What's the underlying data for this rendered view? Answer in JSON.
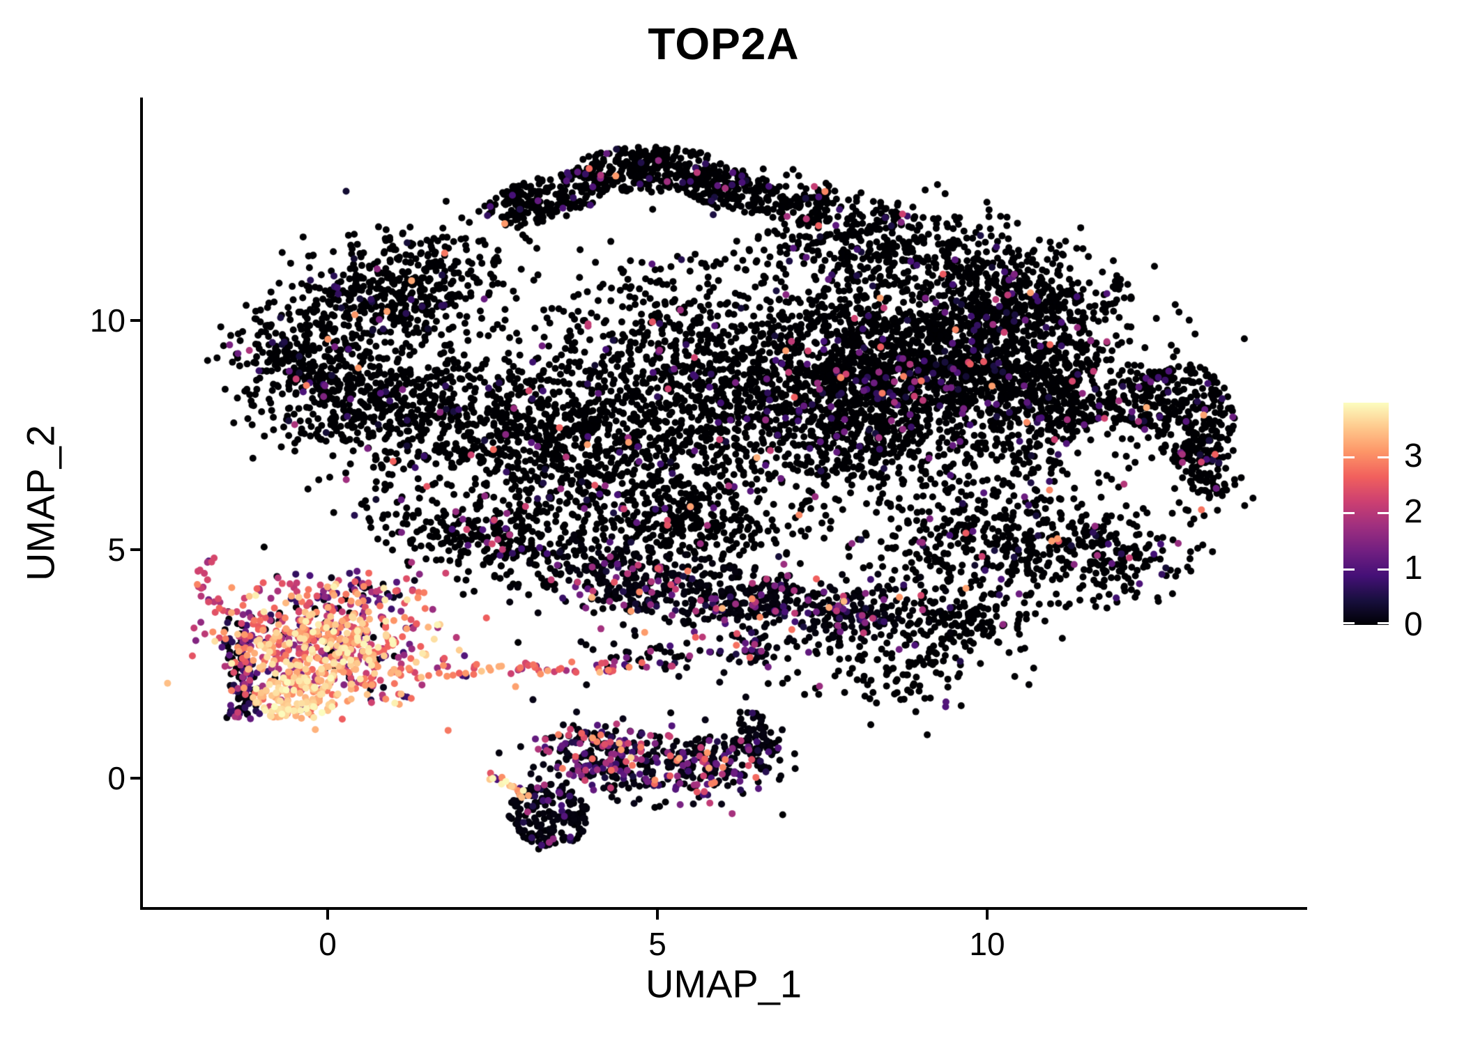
{
  "chart_data": {
    "type": "scatter",
    "title": "TOP2A",
    "xlabel": "UMAP_1",
    "ylabel": "UMAP_2",
    "xlim": [
      -2.8,
      14.8
    ],
    "ylim": [
      -2.8,
      14.8
    ],
    "xticks": [
      0,
      5,
      10
    ],
    "yticks": [
      0,
      5,
      10
    ],
    "grid": false,
    "point_radius_px": 5,
    "seed": 1337,
    "colorbar": {
      "position": "right",
      "tick_values": [
        0,
        1,
        2,
        3
      ],
      "tick_labels": [
        "0",
        "1",
        "2",
        "3"
      ],
      "vmin": 0,
      "vmax": 3.95,
      "colormap": "magma",
      "stops": [
        "#000004",
        "#180f3e",
        "#451077",
        "#721f81",
        "#9f2f7f",
        "#cd4071",
        "#f1605d",
        "#fd9567",
        "#fec98d",
        "#fcfdbf"
      ]
    },
    "expr_profiles": {
      "A": [
        [
          0.935,
          0,
          0
        ],
        [
          0.045,
          0.3,
          1.3
        ],
        [
          0.014,
          1.3,
          2.3
        ],
        [
          0.006,
          2.3,
          3.3
        ]
      ],
      "B": [
        [
          0.8,
          0,
          0.1
        ],
        [
          0.1,
          0.3,
          1.3
        ],
        [
          0.06,
          1.3,
          2.3
        ],
        [
          0.04,
          2.3,
          3.4
        ]
      ],
      "C": [
        [
          0.05,
          0,
          0.2
        ],
        [
          0.1,
          0.5,
          1.6
        ],
        [
          0.22,
          1.6,
          2.5
        ],
        [
          0.38,
          2.5,
          3.3
        ],
        [
          0.25,
          3.3,
          3.95
        ]
      ],
      "D": [
        [
          0.1,
          2.6,
          3.2
        ],
        [
          0.9,
          3.2,
          3.95
        ]
      ],
      "E": [
        [
          0.55,
          0,
          0.1
        ],
        [
          0.3,
          0.3,
          1.2
        ],
        [
          0.15,
          1.5,
          2.6
        ]
      ],
      "F": [
        [
          0.25,
          0,
          0.2
        ],
        [
          0.3,
          0.6,
          1.6
        ],
        [
          0.3,
          1.6,
          2.6
        ],
        [
          0.15,
          2.6,
          3.3
        ]
      ],
      "G": [
        [
          0.15,
          0.8,
          1.5
        ],
        [
          0.7,
          1.8,
          2.7
        ],
        [
          0.15,
          2.7,
          3.2
        ]
      ],
      "H": [
        [
          0.08,
          0.6,
          1.4
        ],
        [
          0.25,
          1.6,
          2.4
        ],
        [
          0.55,
          2.4,
          3.2
        ],
        [
          0.12,
          3.2,
          3.7
        ]
      ],
      "I": [
        [
          0.62,
          0,
          0.15
        ],
        [
          0.2,
          0.4,
          1.4
        ],
        [
          0.12,
          1.4,
          2.4
        ],
        [
          0.06,
          2.4,
          3.4
        ]
      ],
      "J": [
        [
          0.88,
          0,
          0.1
        ],
        [
          0.09,
          0.4,
          1.3
        ],
        [
          0.03,
          1.4,
          2.2
        ]
      ],
      "K": [
        [
          0.2,
          0.9,
          1.7
        ],
        [
          0.35,
          2.2,
          3.0
        ],
        [
          0.3,
          3.0,
          3.7
        ],
        [
          0.15,
          3.7,
          3.95
        ]
      ]
    },
    "holes": [
      {
        "c": [
          11.95,
          6.8
        ],
        "r": [
          0.85,
          0.95
        ],
        "keep": 0.18
      },
      {
        "c": [
          4.9,
          12.1
        ],
        "r": [
          1.5,
          0.55
        ],
        "keep": 0.3
      },
      {
        "c": [
          2.0,
          6.2
        ],
        "r": [
          0.8,
          0.55
        ],
        "keep": 0.45
      },
      {
        "c": [
          12.2,
          9.9
        ],
        "r": [
          0.6,
          0.5
        ],
        "keep": 0.4
      }
    ],
    "clusters": [
      {
        "name": "ridge-left",
        "group": "blob",
        "shape": "uniform",
        "c": [
          3.3,
          12.65
        ],
        "r": [
          1.05,
          0.5
        ],
        "rot": 25,
        "n": 230,
        "expr": "A"
      },
      {
        "name": "ridge-top",
        "group": "blob",
        "shape": "uniform",
        "c": [
          4.9,
          13.3
        ],
        "r": [
          1.15,
          0.5
        ],
        "rot": 0,
        "n": 270,
        "expr": "A"
      },
      {
        "name": "ridge-right",
        "group": "blob",
        "shape": "uniform",
        "c": [
          6.15,
          12.85
        ],
        "r": [
          0.85,
          0.45
        ],
        "rot": -20,
        "n": 170,
        "expr": "A"
      },
      {
        "name": "upper-left-slope",
        "group": "blob",
        "shape": "gauss",
        "c": [
          1.1,
          10.6
        ],
        "r": [
          1.7,
          1.1
        ],
        "rot": 28,
        "n": 520,
        "expr": "A"
      },
      {
        "name": "left-bulge",
        "group": "blob",
        "shape": "gauss",
        "c": [
          -0.5,
          9.0
        ],
        "r": [
          1.0,
          1.3
        ],
        "rot": 10,
        "n": 260,
        "expr": "A"
      },
      {
        "name": "left-mid",
        "group": "blob",
        "shape": "gauss",
        "c": [
          0.9,
          8.2
        ],
        "r": [
          1.3,
          1.2
        ],
        "rot": 0,
        "n": 380,
        "expr": "A"
      },
      {
        "name": "mid-left",
        "group": "blob",
        "shape": "gauss",
        "c": [
          3.1,
          7.4
        ],
        "r": [
          2.0,
          1.9
        ],
        "rot": 0,
        "n": 820,
        "expr": "A"
      },
      {
        "name": "low-left-band",
        "group": "blob",
        "shape": "gauss",
        "c": [
          2.3,
          5.4
        ],
        "r": [
          1.5,
          0.9
        ],
        "rot": -25,
        "n": 300,
        "expr": "A"
      },
      {
        "name": "center",
        "group": "blob",
        "shape": "gauss",
        "c": [
          5.6,
          8.6
        ],
        "r": [
          2.1,
          2.4
        ],
        "rot": 0,
        "n": 1050,
        "expr": "A"
      },
      {
        "name": "center-low",
        "group": "blob",
        "shape": "gauss",
        "c": [
          5.2,
          5.6
        ],
        "r": [
          1.7,
          1.1
        ],
        "rot": -10,
        "n": 380,
        "expr": "A"
      },
      {
        "name": "core-right",
        "group": "blob",
        "shape": "gauss",
        "c": [
          8.2,
          8.5
        ],
        "r": [
          1.8,
          2.0
        ],
        "rot": 8,
        "n": 1350,
        "expr": "A"
      },
      {
        "name": "core-top-right",
        "group": "blob",
        "shape": "gauss",
        "c": [
          9.8,
          9.4
        ],
        "r": [
          1.4,
          1.5
        ],
        "rot": 0,
        "n": 650,
        "expr": "A"
      },
      {
        "name": "right-lobe",
        "group": "blob",
        "shape": "gauss",
        "c": [
          11.2,
          8.2
        ],
        "r": [
          1.5,
          1.8
        ],
        "rot": -12,
        "n": 700,
        "expr": "A"
      },
      {
        "name": "right-knob",
        "group": "blob",
        "shape": "uniform",
        "c": [
          12.95,
          7.9
        ],
        "r": [
          0.8,
          1.15
        ],
        "rot": 0,
        "n": 300,
        "expr": "A"
      },
      {
        "name": "right-edge",
        "group": "blob",
        "shape": "gauss",
        "c": [
          13.3,
          6.7
        ],
        "r": [
          0.45,
          0.8
        ],
        "rot": 0,
        "n": 90,
        "expr": "A"
      },
      {
        "name": "top-right-band",
        "group": "blob",
        "shape": "gauss",
        "c": [
          8.4,
          11.6
        ],
        "r": [
          2.0,
          1.0
        ],
        "rot": -8,
        "n": 430,
        "expr": "A"
      },
      {
        "name": "top-right-2",
        "group": "blob",
        "shape": "gauss",
        "c": [
          10.7,
          10.5
        ],
        "r": [
          1.4,
          0.85
        ],
        "rot": -22,
        "n": 300,
        "expr": "A"
      },
      {
        "name": "top-right-small",
        "group": "blob",
        "shape": "gauss",
        "c": [
          7.3,
          12.5
        ],
        "r": [
          0.6,
          0.45
        ],
        "rot": 0,
        "n": 80,
        "expr": "A"
      },
      {
        "name": "bottom-right-field",
        "group": "blob",
        "shape": "gauss",
        "c": [
          10.2,
          5.1
        ],
        "r": [
          1.9,
          1.2
        ],
        "rot": 8,
        "n": 420,
        "expr": "A"
      },
      {
        "name": "bottom-right-small",
        "group": "blob",
        "shape": "gauss",
        "c": [
          12.0,
          4.7
        ],
        "r": [
          0.9,
          0.7
        ],
        "rot": 0,
        "n": 130,
        "expr": "A"
      },
      {
        "name": "bottom-right-tip",
        "group": "blob",
        "shape": "gauss",
        "c": [
          9.7,
          3.5
        ],
        "r": [
          1.1,
          0.6
        ],
        "rot": 12,
        "n": 140,
        "expr": "A"
      },
      {
        "name": "bottom-band-1",
        "group": "blob",
        "shape": "gauss",
        "c": [
          4.6,
          4.3
        ],
        "r": [
          1.2,
          0.75
        ],
        "rot": -12,
        "n": 250,
        "expr": "B"
      },
      {
        "name": "bottom-band-2",
        "group": "blob",
        "shape": "gauss",
        "c": [
          6.3,
          3.9
        ],
        "r": [
          1.2,
          0.65
        ],
        "rot": 0,
        "n": 220,
        "expr": "B"
      },
      {
        "name": "bottom-band-3",
        "group": "blob",
        "shape": "gauss",
        "c": [
          7.9,
          3.6
        ],
        "r": [
          1.1,
          0.6
        ],
        "rot": 6,
        "n": 190,
        "expr": "B"
      },
      {
        "name": "below-scatter",
        "group": "blob",
        "shape": "gauss",
        "c": [
          8.6,
          2.4
        ],
        "r": [
          1.7,
          0.9
        ],
        "rot": 0,
        "n": 130,
        "expr": "A"
      },
      {
        "name": "string-mid",
        "group": "blob",
        "shape": "gauss",
        "c": [
          6.35,
          2.8
        ],
        "r": [
          0.45,
          0.5
        ],
        "rot": 0,
        "n": 40,
        "expr": "B"
      },
      {
        "name": "bright-core",
        "group": "tcell",
        "shape": "gauss",
        "c": [
          0.0,
          2.85
        ],
        "r": [
          1.45,
          1.05
        ],
        "rot": -8,
        "n": 600,
        "expr": "C"
      },
      {
        "name": "bright-sub",
        "group": "tcell",
        "shape": "uniform",
        "c": [
          -0.5,
          1.75
        ],
        "r": [
          0.65,
          0.5
        ],
        "rot": 0,
        "n": 120,
        "expr": "D"
      },
      {
        "name": "west-dark-strip",
        "group": "tcell",
        "shape": "gauss",
        "c": [
          -1.3,
          2.45
        ],
        "r": [
          0.22,
          1.05
        ],
        "rot": 4,
        "n": 95,
        "expr": "E"
      },
      {
        "name": "west-low-tail",
        "group": "tcell",
        "shape": "gauss",
        "c": [
          -1.35,
          1.45
        ],
        "r": [
          0.18,
          0.35
        ],
        "rot": 0,
        "n": 18,
        "expr": "E"
      },
      {
        "name": "north-scatter",
        "group": "tcell",
        "shape": "gauss",
        "c": [
          0.35,
          4.0
        ],
        "r": [
          1.05,
          0.45
        ],
        "rot": -5,
        "n": 80,
        "expr": "F"
      },
      {
        "name": "hook-arc",
        "group": "tcell",
        "shape": "arc",
        "p": [
          [
            -1.15,
            3.5
          ],
          [
            -2.25,
            3.9
          ],
          [
            -1.75,
            4.85
          ]
        ],
        "jitter": 0.09,
        "n": 26,
        "expr": "G"
      },
      {
        "name": "trail",
        "group": "trail",
        "shape": "strip",
        "p": [
          [
            0.95,
            2.3
          ],
          [
            4.35,
            2.45
          ]
        ],
        "jitter": 0.13,
        "n": 60,
        "expr": "H"
      },
      {
        "name": "trail-merge",
        "group": "trail",
        "shape": "gauss",
        "c": [
          4.9,
          2.6
        ],
        "r": [
          0.6,
          0.35
        ],
        "rot": 0,
        "n": 45,
        "expr": "B"
      },
      {
        "name": "bottom-main",
        "group": "bottom",
        "shape": "gauss",
        "c": [
          4.25,
          0.35
        ],
        "r": [
          1.1,
          0.7
        ],
        "rot": -22,
        "n": 250,
        "expr": "I"
      },
      {
        "name": "bottom-dense",
        "group": "bottom",
        "shape": "uniform",
        "c": [
          3.35,
          -0.8
        ],
        "r": [
          0.6,
          0.7
        ],
        "rot": 15,
        "n": 170,
        "expr": "J"
      },
      {
        "name": "bottom-right-part",
        "group": "bottom",
        "shape": "gauss",
        "c": [
          5.6,
          0.35
        ],
        "r": [
          0.95,
          0.65
        ],
        "rot": -8,
        "n": 190,
        "expr": "I"
      },
      {
        "name": "bottom-spur",
        "group": "bottom",
        "shape": "gauss",
        "c": [
          6.55,
          0.75
        ],
        "r": [
          0.4,
          0.7
        ],
        "rot": 18,
        "n": 80,
        "expr": "J"
      },
      {
        "name": "bottom-left-tip",
        "group": "bottom",
        "shape": "arc",
        "p": [
          [
            2.45,
            0.05
          ],
          [
            2.7,
            -0.1
          ],
          [
            3.05,
            -0.4
          ]
        ],
        "jitter": 0.07,
        "n": 20,
        "expr": "K"
      },
      {
        "name": "bottom-top-arc",
        "group": "bottom",
        "shape": "list",
        "pts": [
          [
            3.5,
            0.95,
            2.9
          ],
          [
            3.68,
            1.07,
            2.2
          ],
          [
            3.85,
            0.98,
            2.6
          ],
          [
            4.03,
            0.83,
            1.9
          ],
          [
            4.2,
            0.74,
            2.4
          ],
          [
            3.3,
            0.85,
            2.1
          ],
          [
            4.45,
            0.62,
            3.1
          ],
          [
            4.6,
            0.45,
            3.6
          ],
          [
            4.62,
            0.28,
            2.8
          ]
        ]
      },
      {
        "name": "bottom-colored-strip",
        "group": "bottom",
        "shape": "list",
        "pts": [
          [
            5.72,
            0.42,
            2.6
          ],
          [
            5.78,
            0.22,
            3.2
          ],
          [
            5.7,
            0.05,
            2.2
          ],
          [
            5.82,
            -0.12,
            2.9
          ],
          [
            5.9,
            0.3,
            1.2
          ],
          [
            5.6,
            -0.3,
            2.5
          ]
        ]
      },
      {
        "name": "strays",
        "group": "bottom",
        "shape": "list",
        "pts": [
          [
            3.2,
            -1.55,
            0
          ],
          [
            3.45,
            -1.42,
            0
          ],
          [
            2.95,
            -1.2,
            0
          ],
          [
            6.9,
            -0.8,
            0
          ],
          [
            13.9,
            9.6,
            0
          ]
        ]
      }
    ]
  },
  "figure": {
    "title": "TOP2A",
    "x_axis_title": "UMAP_1",
    "y_axis_title": "UMAP_2",
    "x_tick_labels": [
      "0",
      "5",
      "10"
    ],
    "y_tick_labels": [
      "0",
      "5",
      "10"
    ],
    "colorbar_labels": [
      "0",
      "1",
      "2",
      "3"
    ],
    "background_color": "#ffffff",
    "axis_color": "#000000"
  }
}
